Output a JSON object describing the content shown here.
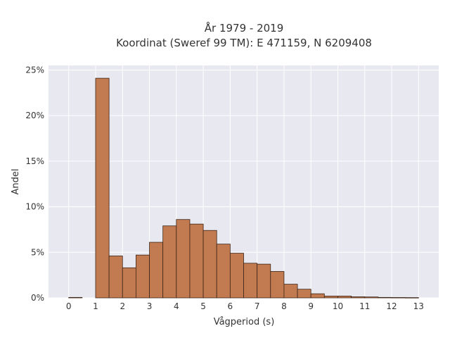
{
  "chart_data": {
    "type": "bar",
    "title_line1": "År 1979 - 2019",
    "title_line2": "Koordinat (Sweref 99 TM): E 471159, N 6209408",
    "xlabel": "Vågperiod (s)",
    "ylabel": "Andel",
    "x_ticks": [
      "0",
      "1",
      "2",
      "3",
      "4",
      "5",
      "6",
      "7",
      "8",
      "9",
      "10",
      "11",
      "12",
      "13"
    ],
    "y_ticks": [
      "0%",
      "5%",
      "10%",
      "15%",
      "20%",
      "25%"
    ],
    "xlim": [
      -0.75,
      13.75
    ],
    "ylim": [
      0,
      25.5
    ],
    "y_tick_values": [
      0,
      5,
      10,
      15,
      20,
      25
    ],
    "x_tick_values": [
      0,
      1,
      2,
      3,
      4,
      5,
      6,
      7,
      8,
      9,
      10,
      11,
      12,
      13
    ],
    "bin_width": 0.5,
    "bins": [
      {
        "start": 0.0,
        "value": 0.05
      },
      {
        "start": 1.0,
        "value": 24.1
      },
      {
        "start": 1.5,
        "value": 4.6
      },
      {
        "start": 2.0,
        "value": 3.3
      },
      {
        "start": 2.5,
        "value": 4.7
      },
      {
        "start": 3.0,
        "value": 6.1
      },
      {
        "start": 3.5,
        "value": 7.9
      },
      {
        "start": 4.0,
        "value": 8.6
      },
      {
        "start": 4.5,
        "value": 8.1
      },
      {
        "start": 5.0,
        "value": 7.4
      },
      {
        "start": 5.5,
        "value": 5.9
      },
      {
        "start": 6.0,
        "value": 4.9
      },
      {
        "start": 6.5,
        "value": 3.8
      },
      {
        "start": 7.0,
        "value": 3.7
      },
      {
        "start": 7.5,
        "value": 2.9
      },
      {
        "start": 8.0,
        "value": 1.5
      },
      {
        "start": 8.5,
        "value": 0.95
      },
      {
        "start": 9.0,
        "value": 0.45
      },
      {
        "start": 9.5,
        "value": 0.2
      },
      {
        "start": 10.0,
        "value": 0.2
      },
      {
        "start": 10.5,
        "value": 0.12
      },
      {
        "start": 11.0,
        "value": 0.1
      },
      {
        "start": 11.5,
        "value": 0.05
      },
      {
        "start": 12.0,
        "value": 0.04
      },
      {
        "start": 12.5,
        "value": 0.03
      }
    ],
    "grid": true,
    "colors": {
      "bar_fill": "#c27a50",
      "bar_edge": "#3d2517",
      "plot_background": "#e8e8f0",
      "grid": "#ffffff"
    }
  }
}
